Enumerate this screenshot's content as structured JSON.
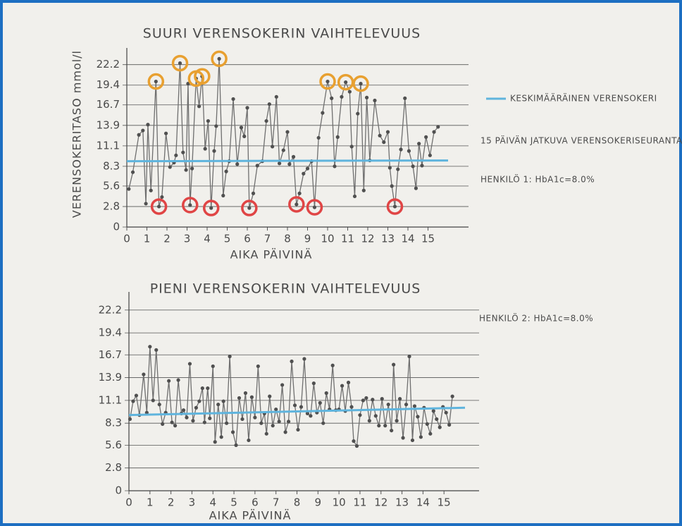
{
  "chart_data": [
    {
      "type": "line",
      "title": "SUURI VERENSOKERIN VAIHTELEVUUS",
      "ylabel": "VERENSOKERITASO mmol/l",
      "xlabel": "AIKA PÄIVINÄ",
      "annotations": [
        "15 PÄIVÄN JATKUVA VERENSOKERISEURANTA",
        "HENKILÖ 1: HbA1c=8.0%"
      ],
      "xlim": [
        0,
        16
      ],
      "ylim": [
        0,
        24
      ],
      "xticks": [
        0,
        1,
        2,
        3,
        4,
        5,
        6,
        7,
        8,
        9,
        10,
        11,
        12,
        13,
        14,
        15
      ],
      "yticks": [
        0,
        2.8,
        5.6,
        8.3,
        11.1,
        13.9,
        16.7,
        19.4,
        22.2
      ],
      "grid": true,
      "series": [
        {
          "style": "line",
          "color": "#6f6f6f",
          "x": [
            0.1,
            0.3,
            0.6,
            0.8,
            0.95,
            1.05,
            1.2,
            1.45,
            1.6,
            1.75,
            1.95,
            2.15,
            2.35,
            2.45,
            2.65,
            2.8,
            2.95,
            3.05,
            3.15,
            3.25,
            3.45,
            3.6,
            3.75,
            3.9,
            4.05,
            4.2,
            4.35,
            4.45,
            4.6,
            4.8,
            4.95,
            5.1,
            5.3,
            5.5,
            5.7,
            5.85,
            6.0,
            6.1,
            6.3,
            6.5,
            6.75,
            6.95,
            7.1,
            7.25,
            7.45,
            7.6,
            7.8,
            8.0,
            8.1,
            8.3,
            8.45,
            8.6,
            8.8,
            9.0,
            9.2,
            9.35,
            9.55,
            9.75,
            10.0,
            10.2,
            10.35,
            10.5,
            10.7,
            10.9,
            11.1,
            11.2,
            11.35,
            11.5,
            11.65,
            11.8,
            11.95,
            12.1,
            12.35,
            12.6,
            12.8,
            13.0,
            13.1,
            13.2,
            13.35,
            13.5,
            13.65,
            13.85,
            14.05,
            14.25,
            14.4,
            14.55,
            14.7,
            14.9,
            15.1,
            15.3,
            15.5
          ],
          "values": [
            5.2,
            7.5,
            12.6,
            13.2,
            3.2,
            14,
            5,
            19.9,
            2.8,
            4.1,
            12.8,
            8.2,
            8.8,
            9.8,
            22.4,
            10.2,
            7.8,
            19.6,
            3,
            8,
            20.3,
            16.5,
            20.6,
            10.7,
            14.5,
            2.6,
            10.4,
            13.8,
            23,
            4.3,
            7.6,
            9,
            17.5,
            8.6,
            13.6,
            12.4,
            16.3,
            2.6,
            4.6,
            8.4,
            9,
            14.5,
            16.8,
            11,
            17.8,
            8.7,
            10.5,
            13,
            8.6,
            9.6,
            3.1,
            4.6,
            7.3,
            8,
            9,
            2.7,
            12.2,
            15.6,
            19.9,
            17.6,
            8.3,
            12.3,
            17.8,
            19.8,
            18.5,
            11,
            4.2,
            15.5,
            19.6,
            5,
            17.7,
            9.1,
            17.3,
            12.5,
            11.6,
            13,
            8.1,
            5.6,
            2.8,
            7.9,
            10.6,
            17.6,
            10.4,
            8.3,
            5.3,
            11.4,
            8.4,
            12.3,
            9.8,
            13,
            13.7
          ]
        },
        {
          "style": "ring",
          "color": "#e8a030",
          "x": [
            1.45,
            2.65,
            3.45,
            3.75,
            4.6,
            10.0,
            10.9,
            11.65
          ],
          "values": [
            19.9,
            22.4,
            20.3,
            20.6,
            23,
            19.9,
            19.8,
            19.6
          ]
        },
        {
          "style": "ring",
          "color": "#e04545",
          "x": [
            1.6,
            3.15,
            4.2,
            6.1,
            8.45,
            9.35,
            13.35
          ],
          "values": [
            2.8,
            3,
            2.6,
            2.6,
            3.1,
            2.7,
            2.8
          ]
        },
        {
          "style": "mean",
          "name": "KESKIMÄÄRÄINEN VERENSOKERI",
          "color": "#5fb4dd",
          "x": [
            0,
            16
          ],
          "values": [
            9.0,
            9.1
          ]
        }
      ]
    },
    {
      "type": "line",
      "title": "PIENI VERENSOKERIN VAIHTELEVUUS",
      "xlabel": "AIKA PÄIVINÄ",
      "annotations": [
        "HENKILÖ 2: HbA1c=8.0%"
      ],
      "xlim": [
        0,
        16
      ],
      "ylim": [
        0,
        24
      ],
      "xticks": [
        0,
        1,
        2,
        3,
        4,
        5,
        6,
        7,
        8,
        9,
        10,
        11,
        12,
        13,
        14,
        15
      ],
      "yticks": [
        0,
        2.8,
        5.6,
        8.3,
        11.1,
        13.9,
        16.7,
        19.4,
        22.2
      ],
      "grid": true,
      "series": [
        {
          "style": "line",
          "color": "#6f6f6f",
          "x": [
            0.05,
            0.2,
            0.35,
            0.5,
            0.7,
            0.85,
            1.0,
            1.15,
            1.3,
            1.45,
            1.6,
            1.75,
            1.9,
            2.05,
            2.2,
            2.35,
            2.5,
            2.6,
            2.75,
            2.9,
            3.05,
            3.2,
            3.35,
            3.5,
            3.6,
            3.75,
            3.85,
            4.0,
            4.1,
            4.25,
            4.4,
            4.5,
            4.65,
            4.8,
            4.95,
            5.1,
            5.25,
            5.4,
            5.55,
            5.7,
            5.85,
            6.0,
            6.15,
            6.3,
            6.45,
            6.55,
            6.7,
            6.85,
            7.0,
            7.15,
            7.3,
            7.45,
            7.6,
            7.75,
            7.9,
            8.05,
            8.2,
            8.35,
            8.5,
            8.65,
            8.8,
            8.95,
            9.1,
            9.25,
            9.4,
            9.55,
            9.7,
            9.85,
            10.0,
            10.15,
            10.3,
            10.45,
            10.6,
            10.7,
            10.85,
            11.0,
            11.15,
            11.3,
            11.45,
            11.6,
            11.75,
            11.9,
            12.05,
            12.2,
            12.35,
            12.5,
            12.6,
            12.75,
            12.9,
            13.05,
            13.2,
            13.35,
            13.5,
            13.6,
            13.75,
            13.9,
            14.05,
            14.2,
            14.35,
            14.5,
            14.65,
            14.8,
            14.95,
            15.1,
            15.25,
            15.4
          ],
          "values": [
            8.8,
            11,
            11.7,
            9.3,
            14.3,
            9.6,
            17.7,
            11.1,
            17.3,
            10.6,
            8.2,
            9.6,
            13.5,
            8.4,
            8,
            13.6,
            9.5,
            9.9,
            9,
            15.6,
            8.6,
            10.2,
            11,
            12.6,
            8.4,
            12.6,
            8.9,
            15.3,
            6,
            10.6,
            6.6,
            11,
            8.3,
            16.5,
            7.2,
            5.6,
            11.4,
            8.8,
            12,
            6.2,
            11.5,
            9,
            15.3,
            8.3,
            9.5,
            7,
            11.6,
            8,
            10,
            8.5,
            13,
            7.2,
            8.5,
            15.9,
            10.5,
            7.5,
            10.3,
            16.2,
            9.5,
            9.2,
            13.2,
            9.6,
            10.8,
            8.3,
            12,
            10,
            15.4,
            9.9,
            10,
            12.9,
            9.8,
            13.3,
            10.3,
            6.1,
            5.5,
            9.3,
            11.1,
            11.4,
            8.6,
            11.2,
            9.2,
            8,
            11.3,
            8,
            10.6,
            7.4,
            15.5,
            8.6,
            11.3,
            6.5,
            10.6,
            16.5,
            6.2,
            10.4,
            9.1,
            6.6,
            10.2,
            8.2,
            7,
            9.8,
            8.8,
            7.8,
            10.3,
            9.6,
            8.1,
            11.6
          ]
        },
        {
          "style": "mean",
          "color": "#5fb4dd",
          "x": [
            0,
            16
          ],
          "values": [
            9.3,
            10.2
          ]
        }
      ]
    }
  ]
}
